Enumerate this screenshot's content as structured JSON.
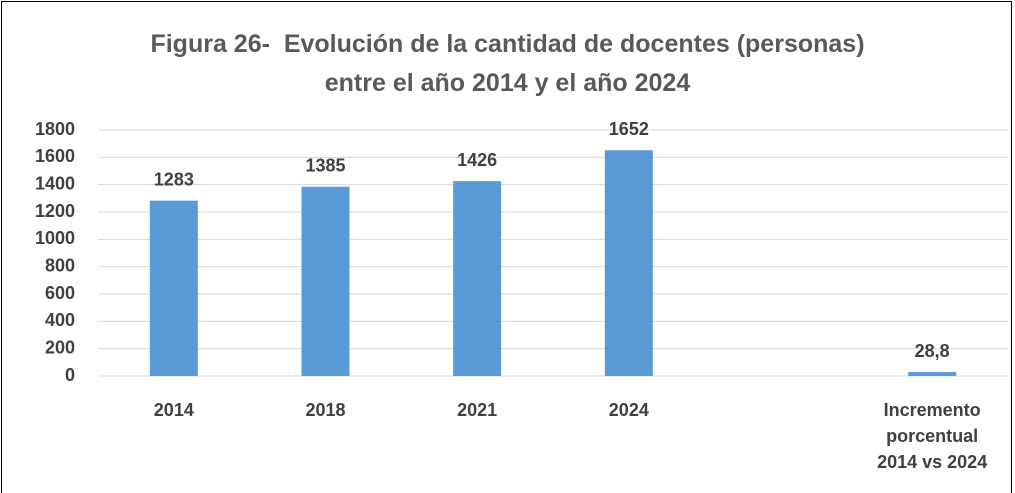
{
  "chart_data": {
    "type": "bar",
    "title": [
      "Figura 26-  Evolución de la cantidad de docentes (personas)",
      "entre el año 2014 y el año 2024"
    ],
    "categories": [
      "2014",
      "2018",
      "2021",
      "2024",
      null,
      "Incremento porcentual 2014 vs 2024"
    ],
    "values": [
      1283,
      1385,
      1426,
      1652,
      null,
      28.8
    ],
    "value_labels": [
      "1283",
      "1385",
      "1426",
      "1652",
      null,
      "28,8"
    ],
    "color": "#5b9bd5",
    "ylim": [
      0,
      1800
    ],
    "yticks": [
      0,
      200,
      400,
      600,
      800,
      1000,
      1200,
      1400,
      1600,
      1800
    ],
    "grid": true
  }
}
